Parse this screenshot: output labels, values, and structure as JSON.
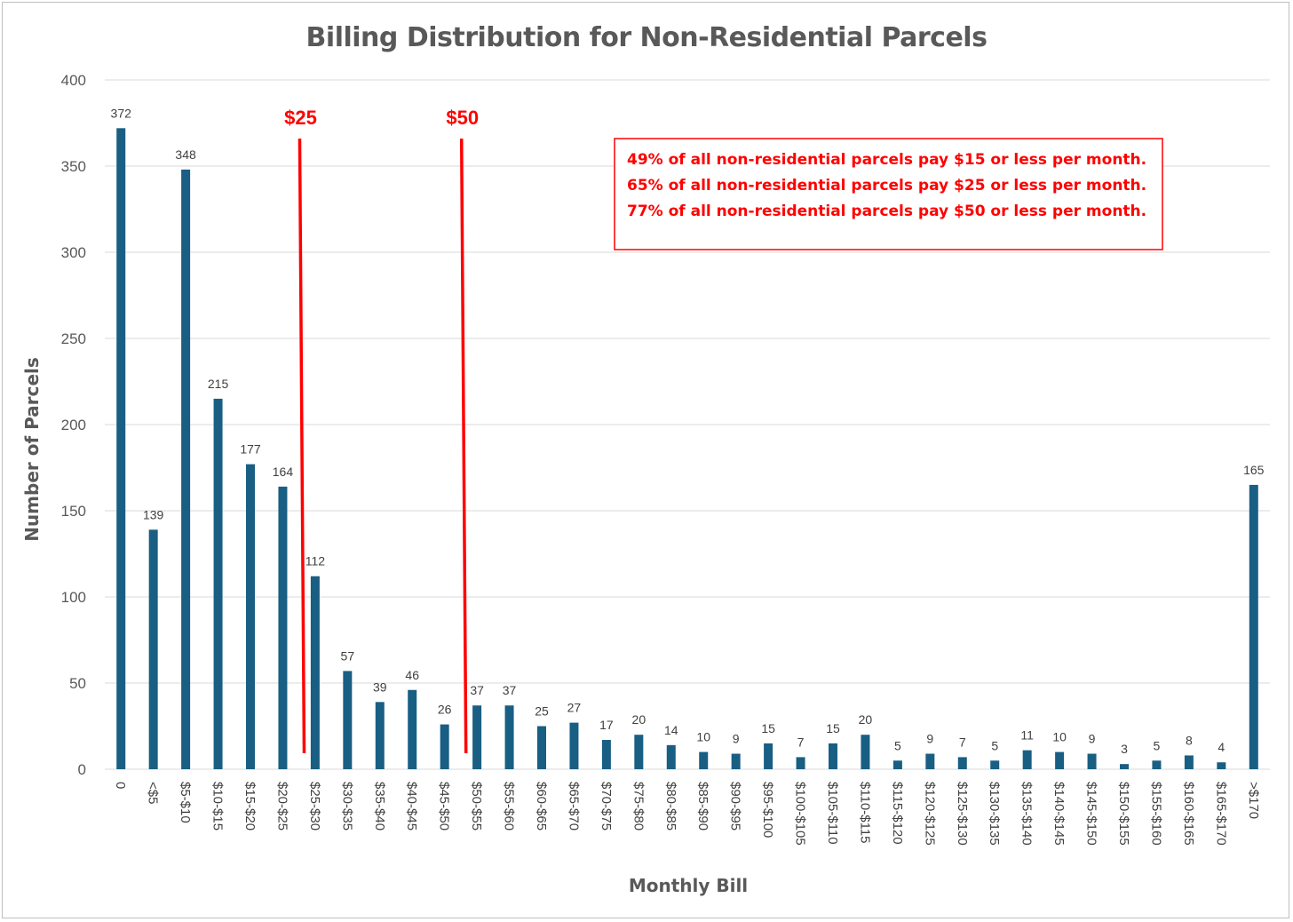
{
  "chart_data": {
    "type": "bar",
    "title": "Billing Distribution for Non-Residential Parcels",
    "xlabel": "Monthly Bill",
    "ylabel": "Number of Parcels",
    "ylim": [
      0,
      400
    ],
    "yticks": [
      0,
      50,
      100,
      150,
      200,
      250,
      300,
      350,
      400
    ],
    "grid": true,
    "categories": [
      "0",
      "<$5",
      "$5-$10",
      "$10-$15",
      "$15-$20",
      "$20-$25",
      "$25-$30",
      "$30-$35",
      "$35-$40",
      "$40-$45",
      "$45-$50",
      "$50-$55",
      "$55-$60",
      "$60-$65",
      "$65-$70",
      "$70-$75",
      "$75-$80",
      "$80-$85",
      "$85-$90",
      "$90-$95",
      "$95-$100",
      "$100-$105",
      "$105-$110",
      "$110-$115",
      "$115-$120",
      "$120-$125",
      "$125-$130",
      "$130-$135",
      "$135-$140",
      "$140-$145",
      "$145-$150",
      "$150-$155",
      "$155-$160",
      "$160-$165",
      "$165-$170",
      ">$170"
    ],
    "values": [
      372,
      139,
      348,
      215,
      177,
      164,
      112,
      57,
      39,
      46,
      26,
      37,
      37,
      25,
      27,
      17,
      20,
      14,
      10,
      9,
      15,
      7,
      15,
      20,
      5,
      9,
      7,
      5,
      11,
      10,
      9,
      3,
      5,
      8,
      4,
      165
    ],
    "bar_color": "#195e83",
    "markers": [
      {
        "label": "$25",
        "position": 5.55,
        "color": "#ff0000"
      },
      {
        "label": "$50",
        "position": 10.55,
        "color": "#ff0000"
      }
    ],
    "annotation": {
      "lines": [
        "49% of all non-residential parcels pay $15 or less per month.",
        "65% of all non-residential parcels pay $25 or less per month.",
        "77% of all non-residential parcels pay $50 or less per month."
      ],
      "color": "#ff0000"
    }
  }
}
